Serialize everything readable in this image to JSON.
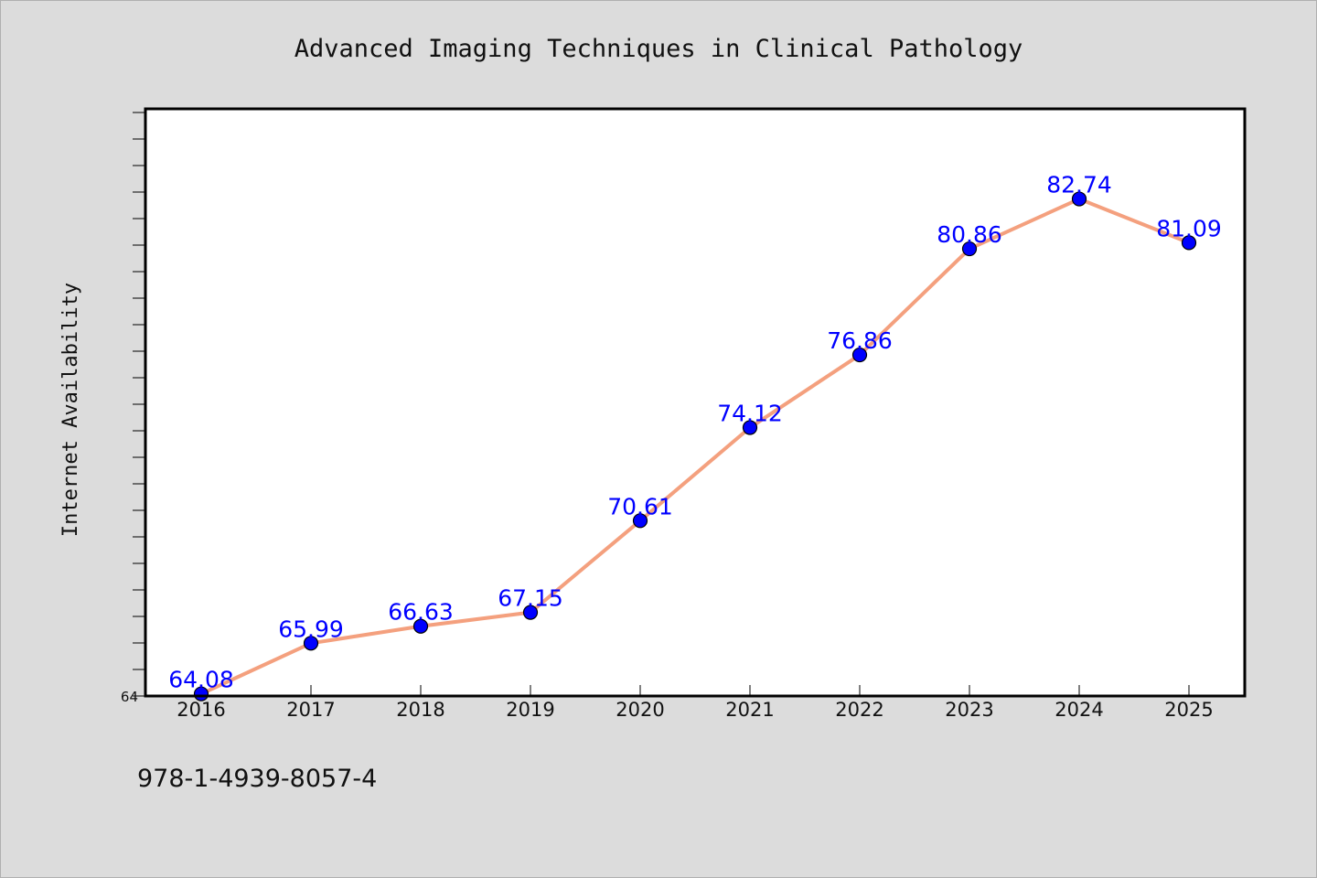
{
  "chart_data": {
    "type": "line",
    "title": "Advanced Imaging Techniques in Clinical Pathology",
    "xlabel": "",
    "ylabel": "Internet Availability",
    "categories": [
      "2016",
      "2017",
      "2018",
      "2019",
      "2020",
      "2021",
      "2022",
      "2023",
      "2024",
      "2025"
    ],
    "series": [
      {
        "values": [
          64.08,
          65.99,
          66.63,
          67.15,
          70.61,
          74.12,
          76.86,
          80.86,
          82.74,
          81.09
        ]
      }
    ],
    "y_tick_labels": [
      "64"
    ],
    "ylim": [
      64,
      86
    ],
    "grid": false,
    "legend": "none",
    "data_labels": true
  },
  "colors": {
    "line": "#f4a07e",
    "marker": "#0000ff",
    "data_label": "#0000ff",
    "plot_background": "#ffffff",
    "page_background": "#dcdcdc"
  },
  "footer": {
    "isbn": "978-1-4939-8057-4"
  }
}
